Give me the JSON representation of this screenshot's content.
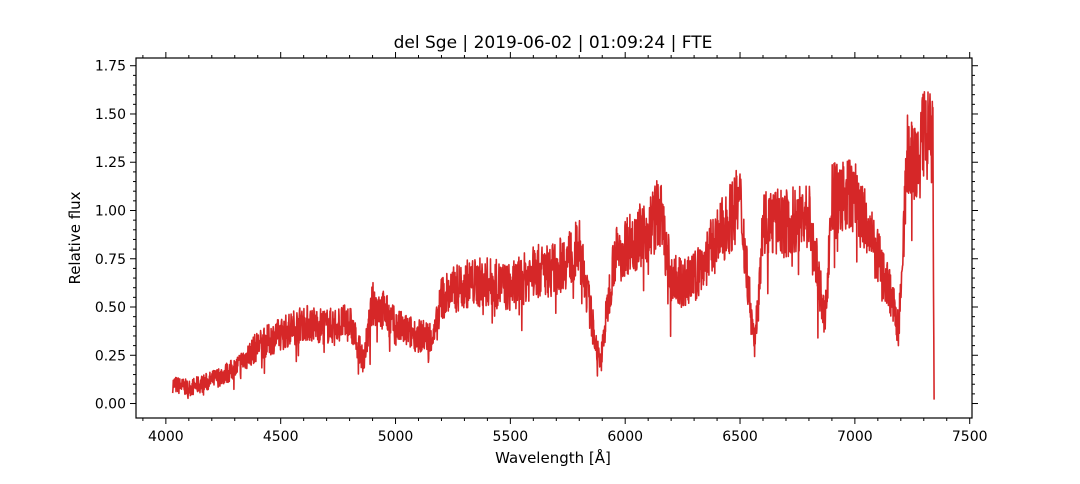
{
  "chart_data": {
    "type": "line",
    "title": "del Sge | 2019-06-02 | 01:09:24 | FTE",
    "xlabel": "Wavelength [Å]",
    "ylabel": "Relative flux",
    "xlim": [
      3870,
      7510
    ],
    "ylim": [
      -0.075,
      1.79
    ],
    "x_ticks": [
      4000,
      4500,
      5000,
      5500,
      6000,
      6500,
      7000,
      7500
    ],
    "y_ticks": [
      0.0,
      0.25,
      0.5,
      0.75,
      1.0,
      1.25,
      1.5,
      1.75
    ],
    "x_tick_labels": [
      "4000",
      "4500",
      "5000",
      "5500",
      "6000",
      "6500",
      "7000",
      "7500"
    ],
    "y_tick_labels": [
      "0.00",
      "0.25",
      "0.50",
      "0.75",
      "1.00",
      "1.25",
      "1.50",
      "1.75"
    ],
    "grid": false,
    "line_color": "#d62728",
    "series": [
      {
        "x": [
          4030,
          4100,
          4200,
          4300,
          4400,
          4500,
          4600,
          4700,
          4800,
          4861,
          4900,
          4950,
          5000,
          5100,
          5170,
          5200,
          5300,
          5400,
          5500,
          5600,
          5700,
          5800,
          5890,
          5896,
          5950,
          6000,
          6100,
          6150,
          6200,
          6250,
          6300,
          6400,
          6500,
          6563,
          6600,
          6700,
          6800,
          6870,
          6900,
          7000,
          7100,
          7150,
          7190,
          7230,
          7270,
          7300,
          7340,
          7345
        ],
        "y": [
          0.1,
          0.08,
          0.12,
          0.18,
          0.3,
          0.36,
          0.42,
          0.4,
          0.42,
          0.22,
          0.52,
          0.48,
          0.4,
          0.35,
          0.35,
          0.55,
          0.62,
          0.63,
          0.6,
          0.68,
          0.7,
          0.8,
          0.2,
          0.25,
          0.75,
          0.82,
          0.9,
          1.0,
          0.65,
          0.62,
          0.65,
          0.85,
          1.05,
          0.3,
          0.95,
          0.93,
          0.98,
          0.42,
          1.05,
          1.08,
          0.75,
          0.6,
          0.38,
          1.3,
          1.2,
          1.4,
          1.35,
          0.0
        ]
      }
    ]
  }
}
